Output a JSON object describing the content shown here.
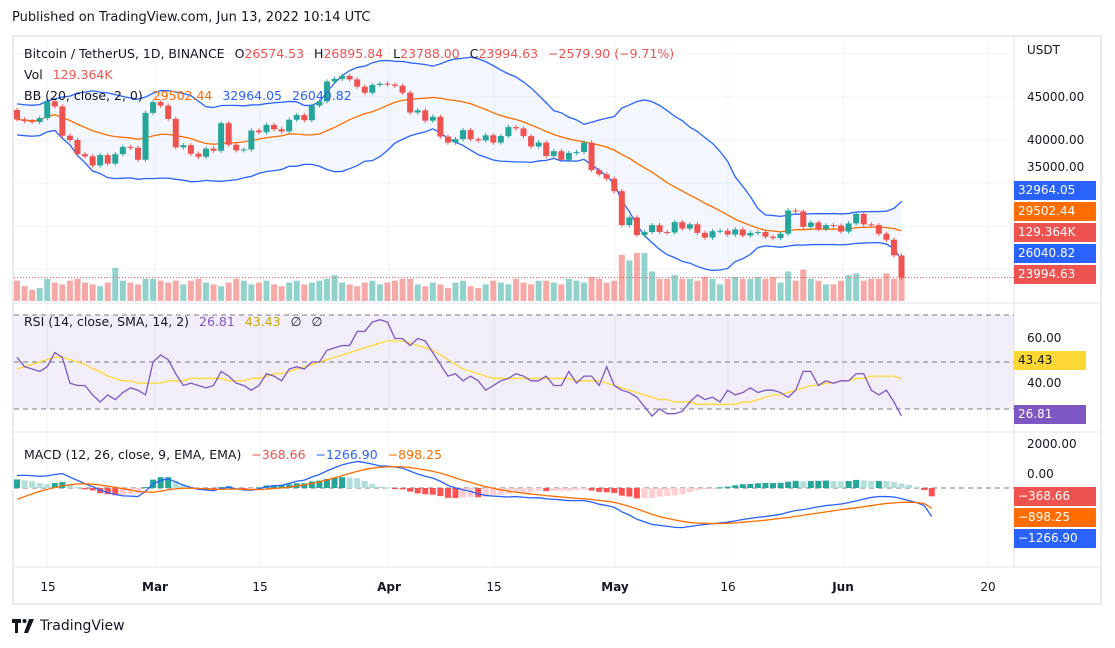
{
  "header": {
    "published": "Published on TradingView.com, Jun 13, 2022 10:14 UTC"
  },
  "legend": {
    "symbol": "Bitcoin / TetherUS, 1D, BINANCE",
    "o_label": "O",
    "o_value": "26574.53",
    "h_label": "H",
    "h_value": "26895.84",
    "l_label": "L",
    "l_value": "23788.00",
    "c_label": "C",
    "c_value": "23994.63",
    "change": "−2579.90 (−9.71%)",
    "vol_label": "Vol",
    "vol_value": "129.364K",
    "bb_label": "BB (20, close, 2, 0)",
    "bb_basis": "29502.44",
    "bb_upper": "32964.05",
    "bb_lower": "26040.82",
    "rsi_label": "RSI (14, close, SMA, 14, 2)",
    "rsi_value": "26.81",
    "rsi_ma": "43.43",
    "rsi_extra1": "∅",
    "rsi_extra2": "∅",
    "macd_label": "MACD (12, 26, close, 9, EMA, EMA)",
    "macd_hist": "−368.66",
    "macd_line": "−1266.90",
    "macd_signal": "−898.25"
  },
  "price_axis": {
    "currency": "USDT",
    "ticks": [
      "45000.00",
      "40000.00",
      "35000.00"
    ],
    "tags": [
      {
        "text": "32964.05",
        "color": "#2962ff"
      },
      {
        "text": "29502.44",
        "color": "#ff6d00"
      },
      {
        "text": "129.364K",
        "color": "#ef5350"
      },
      {
        "text": "26040.82",
        "color": "#2962ff"
      },
      {
        "text": "23994.63",
        "color": "#ef5350"
      }
    ]
  },
  "rsi_axis": {
    "ticks": [
      "60.00",
      "40.00"
    ],
    "tags": [
      {
        "text": "43.43",
        "color": "#fdd835",
        "textColor": "#131722"
      },
      {
        "text": "26.81",
        "color": "#7e57c2",
        "textColor": "#ffffff"
      }
    ]
  },
  "macd_axis": {
    "ticks": [
      "2000.00",
      "0.00"
    ],
    "tags": [
      {
        "text": "−368.66",
        "color": "#ef5350"
      },
      {
        "text": "−898.25",
        "color": "#ff6d00"
      },
      {
        "text": "−1266.90",
        "color": "#2962ff"
      }
    ]
  },
  "time_axis": [
    {
      "text": "15",
      "bold": false
    },
    {
      "text": "Mar",
      "bold": true
    },
    {
      "text": "15",
      "bold": false
    },
    {
      "text": "Apr",
      "bold": true
    },
    {
      "text": "15",
      "bold": false
    },
    {
      "text": "May",
      "bold": true
    },
    {
      "text": "16",
      "bold": false
    },
    {
      "text": "Jun",
      "bold": true
    },
    {
      "text": "20",
      "bold": false
    }
  ],
  "footer": {
    "brand": "TradingView"
  },
  "colors": {
    "up": "#26a69a",
    "down": "#ef5350",
    "bb_basis": "#ff6d00",
    "bb_band": "#2962ff",
    "rsi": "#7e57c2",
    "rsi_ma": "#fdd835",
    "macd": "#2962ff",
    "signal": "#ff6d00"
  },
  "chart_data": {
    "type": "candlestick",
    "title": "Bitcoin / TetherUS, 1D, BINANCE",
    "ylabel": "USDT",
    "ylim": [
      21500,
      51000
    ],
    "start_date": "2022-02-11",
    "close": [
      42400,
      42200,
      42100,
      42550,
      44500,
      43900,
      40500,
      40000,
      38350,
      38100,
      37050,
      38250,
      37250,
      38350,
      39200,
      39100,
      37700,
      43150,
      44400,
      44000,
      42450,
      39150,
      39400,
      38400,
      38050,
      39000,
      38750,
      41950,
      39450,
      38800,
      38900,
      41100,
      40900,
      41750,
      41250,
      41000,
      42350,
      42900,
      42300,
      44000,
      44500,
      46800,
      47100,
      47450,
      47050,
      46200,
      45500,
      46400,
      46550,
      46450,
      46300,
      45500,
      43200,
      43450,
      42250,
      42700,
      40400,
      39700,
      40100,
      41150,
      40100,
      39950,
      40550,
      39700,
      40450,
      41500,
      41350,
      40450,
      39250,
      39700,
      38150,
      38700,
      37700,
      38500,
      38600,
      39700,
      36500,
      36000,
      35500,
      34050,
      30100,
      31000,
      28950,
      29300,
      30100,
      29300,
      29250,
      30450,
      29700,
      30200,
      29200,
      28650,
      29400,
      29450,
      29000,
      29600,
      28900,
      29200,
      29300,
      28750,
      28600,
      29100,
      31800,
      31700,
      29900,
      30400,
      29650,
      30100,
      30050,
      29350,
      30300,
      31400,
      30200,
      30100,
      29100,
      28400,
      26600,
      23994
    ],
    "open": [
      43500,
      42400,
      42200,
      42100,
      42550,
      44500,
      43900,
      40500,
      40000,
      38350,
      38100,
      37050,
      38250,
      37250,
      38350,
      39200,
      39100,
      37700,
      43150,
      44400,
      44000,
      42450,
      39150,
      39400,
      38400,
      38050,
      39000,
      38750,
      41950,
      39450,
      38800,
      38900,
      41100,
      40900,
      41750,
      41250,
      41000,
      42350,
      42900,
      42300,
      44000,
      44500,
      46800,
      47100,
      47450,
      47050,
      46200,
      45500,
      46400,
      46550,
      46450,
      46300,
      45500,
      43200,
      43450,
      42250,
      42700,
      40400,
      39700,
      40100,
      41150,
      40100,
      39950,
      40550,
      39700,
      40450,
      41500,
      41350,
      40450,
      39250,
      39700,
      38150,
      38700,
      37700,
      38500,
      38600,
      39700,
      36500,
      36000,
      35500,
      34050,
      30100,
      31000,
      28950,
      29300,
      30100,
      29300,
      29250,
      30450,
      29700,
      30200,
      29200,
      28650,
      29400,
      29450,
      29000,
      29600,
      28900,
      29200,
      29300,
      28750,
      28600,
      29100,
      31800,
      31700,
      29900,
      30400,
      29650,
      30100,
      30050,
      29350,
      30300,
      31400,
      30200,
      30100,
      29100,
      28400,
      26574
    ],
    "volume_relative": [
      0.55,
      0.4,
      0.3,
      0.35,
      0.6,
      0.5,
      0.45,
      0.55,
      0.6,
      0.5,
      0.45,
      0.4,
      0.5,
      0.9,
      0.55,
      0.5,
      0.45,
      0.6,
      0.6,
      0.55,
      0.5,
      0.55,
      0.45,
      0.55,
      0.6,
      0.5,
      0.45,
      0.4,
      0.5,
      0.6,
      0.55,
      0.45,
      0.5,
      0.55,
      0.45,
      0.4,
      0.5,
      0.55,
      0.45,
      0.5,
      0.55,
      0.6,
      0.7,
      0.5,
      0.45,
      0.4,
      0.5,
      0.55,
      0.45,
      0.5,
      0.55,
      0.6,
      0.6,
      0.45,
      0.4,
      0.5,
      0.45,
      0.35,
      0.5,
      0.55,
      0.4,
      0.35,
      0.45,
      0.55,
      0.5,
      0.45,
      0.6,
      0.5,
      0.45,
      0.55,
      0.55,
      0.5,
      0.45,
      0.6,
      0.55,
      0.5,
      0.65,
      0.6,
      0.5,
      0.55,
      1.25,
      1.1,
      1.3,
      1.3,
      0.8,
      0.6,
      0.6,
      0.7,
      0.6,
      0.6,
      0.55,
      0.65,
      0.6,
      0.45,
      0.6,
      0.65,
      0.6,
      0.6,
      0.65,
      0.6,
      0.65,
      0.5,
      0.8,
      0.55,
      0.85,
      0.6,
      0.55,
      0.45,
      0.45,
      0.55,
      0.7,
      0.75,
      0.55,
      0.6,
      0.6,
      0.75,
      0.6,
      1.0
    ],
    "rsi": [
      52,
      48,
      47,
      46,
      48,
      54,
      52,
      41,
      40,
      40,
      36,
      33,
      36,
      34,
      37,
      39,
      38,
      36,
      50,
      53,
      51,
      45,
      40,
      41,
      40,
      39,
      40,
      46,
      44,
      41,
      40,
      38,
      40,
      45,
      44,
      42,
      47,
      48,
      47,
      50,
      50,
      55,
      56,
      57,
      57,
      63,
      63,
      67,
      68,
      67,
      60,
      60,
      57,
      60,
      59,
      54,
      49,
      44,
      45,
      42,
      44,
      42,
      38,
      40,
      42,
      43,
      45,
      44,
      42,
      42,
      44,
      40,
      40,
      46,
      41,
      44,
      44,
      40,
      48,
      40,
      38,
      37,
      35,
      31,
      27,
      30,
      28,
      28,
      29,
      33,
      36,
      34,
      35,
      33,
      38,
      36,
      37,
      39,
      37,
      38,
      38,
      37,
      35,
      38,
      46,
      46,
      40,
      42,
      41,
      42,
      42,
      45,
      45,
      38,
      36,
      38,
      33,
      27
    ],
    "rsi_ma": [
      47,
      48,
      49,
      50,
      51,
      52,
      52,
      51,
      50,
      49,
      47,
      46,
      44,
      43,
      42,
      42,
      41,
      41,
      41,
      41,
      42,
      42,
      42,
      43,
      43,
      43,
      43,
      43,
      42,
      42,
      42,
      43,
      43,
      44,
      45,
      45,
      46,
      47,
      48,
      49,
      50,
      51,
      52,
      53,
      54,
      55,
      56,
      57,
      58,
      59,
      59,
      59,
      58,
      57,
      56,
      55,
      53,
      51,
      49,
      47,
      46,
      45,
      44,
      43,
      43,
      43,
      43,
      43,
      43,
      43,
      43,
      43,
      43,
      43,
      42,
      42,
      42,
      42,
      41,
      40,
      39,
      38,
      37,
      36,
      35,
      34,
      34,
      33,
      33,
      33,
      32,
      32,
      32,
      32,
      32,
      32,
      33,
      33,
      34,
      35,
      36,
      36,
      37,
      38,
      39,
      40,
      40,
      41,
      41,
      42,
      42,
      43,
      43,
      44,
      44,
      44,
      44,
      43
    ],
    "macd": [
      560,
      560,
      550,
      520,
      540,
      600,
      640,
      480,
      340,
      190,
      60,
      -100,
      -200,
      -290,
      -350,
      -360,
      -380,
      -140,
      180,
      340,
      400,
      270,
      130,
      30,
      -60,
      -90,
      -120,
      -20,
      30,
      -40,
      -90,
      -100,
      -40,
      60,
      100,
      120,
      200,
      300,
      350,
      490,
      600,
      760,
      900,
      1030,
      1110,
      1180,
      1130,
      1060,
      980,
      970,
      940,
      880,
      750,
      620,
      520,
      440,
      300,
      120,
      0,
      -80,
      -150,
      -260,
      -330,
      -360,
      -380,
      -400,
      -380,
      -410,
      -440,
      -430,
      -480,
      -500,
      -530,
      -560,
      -560,
      -560,
      -620,
      -720,
      -780,
      -860,
      -1060,
      -1200,
      -1390,
      -1500,
      -1620,
      -1660,
      -1700,
      -1750,
      -1760,
      -1710,
      -1660,
      -1620,
      -1590,
      -1550,
      -1520,
      -1460,
      -1400,
      -1350,
      -1300,
      -1270,
      -1220,
      -1170,
      -1080,
      -1000,
      -960,
      -900,
      -840,
      -780,
      -750,
      -710,
      -650,
      -570,
      -490,
      -420,
      -380,
      -380,
      -400,
      -470,
      -560,
      -650,
      -780,
      -1267
    ],
    "macd_signal": [
      -500,
      -380,
      -260,
      -150,
      -60,
      20,
      100,
      140,
      180,
      190,
      170,
      130,
      80,
      30,
      -30,
      -90,
      -150,
      -180,
      -190,
      -140,
      -80,
      -40,
      -10,
      -10,
      -20,
      -40,
      -60,
      -60,
      -50,
      -50,
      -60,
      -70,
      -70,
      -50,
      -20,
      0,
      40,
      90,
      140,
      200,
      270,
      360,
      450,
      550,
      650,
      740,
      820,
      880,
      920,
      940,
      950,
      940,
      910,
      860,
      800,
      740,
      660,
      560,
      450,
      340,
      250,
      150,
      60,
      -10,
      -80,
      -140,
      -190,
      -230,
      -270,
      -300,
      -340,
      -370,
      -400,
      -430,
      -460,
      -480,
      -510,
      -550,
      -590,
      -640,
      -720,
      -820,
      -930,
      -1050,
      -1170,
      -1270,
      -1350,
      -1420,
      -1480,
      -1530,
      -1560,
      -1570,
      -1580,
      -1580,
      -1570,
      -1550,
      -1520,
      -1490,
      -1460,
      -1430,
      -1390,
      -1350,
      -1310,
      -1260,
      -1210,
      -1160,
      -1110,
      -1060,
      -1010,
      -960,
      -920,
      -880,
      -830,
      -780,
      -730,
      -690,
      -660,
      -640,
      -630,
      -650,
      -690,
      -898
    ],
    "macd_hist": [
      380,
      340,
      300,
      220,
      170,
      220,
      260,
      140,
      40,
      -60,
      -110,
      -230,
      -280,
      -320,
      -320,
      -270,
      -230,
      40,
      370,
      480,
      480,
      310,
      140,
      40,
      -40,
      -50,
      -60,
      40,
      80,
      10,
      -30,
      -30,
      30,
      110,
      120,
      120,
      160,
      210,
      210,
      290,
      330,
      400,
      450,
      480,
      460,
      440,
      310,
      180,
      60,
      30,
      -10,
      -60,
      -160,
      -240,
      -280,
      -300,
      -360,
      -440,
      -450,
      -420,
      -400,
      -410,
      -390,
      -350,
      -300,
      -260,
      -190,
      -180,
      -170,
      -130,
      -140,
      -130,
      -130,
      -130,
      -100,
      -80,
      -110,
      -170,
      -190,
      -220,
      -340,
      -380,
      -460,
      -450,
      -450,
      -390,
      -350,
      -330,
      -280,
      -180,
      -100,
      -50,
      -10,
      30,
      60,
      120,
      170,
      180,
      210,
      220,
      220,
      230,
      280,
      320,
      300,
      310,
      320,
      330,
      310,
      300,
      310,
      360,
      340,
      310,
      310,
      300,
      270,
      200,
      140,
      60,
      -90,
      -369
    ]
  }
}
